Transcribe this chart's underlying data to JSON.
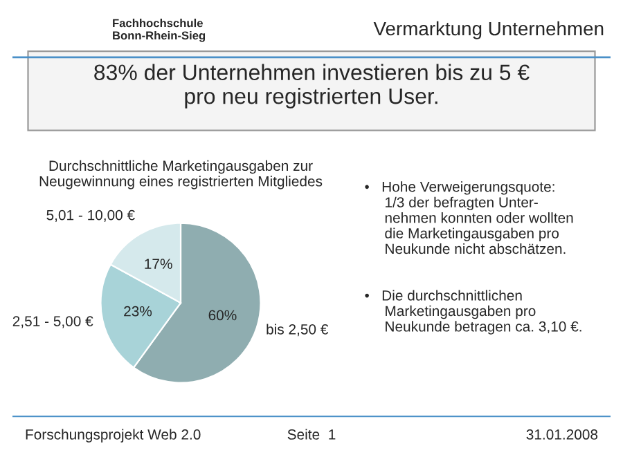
{
  "chart_data": {
    "type": "pie",
    "title": "Durchschnittliche Marketingausgaben zur\nNeugewinnung eines registrierten Mitgliedes",
    "categories": [
      "bis 2,50 €",
      "2,51 - 5,00 €",
      "5,01 - 10,00 €"
    ],
    "values": [
      60,
      23,
      17
    ],
    "colors": [
      "#8fadb0",
      "#a8d3d8",
      "#d5e9ec"
    ],
    "value_labels": [
      "60%",
      "23%",
      "17%"
    ],
    "annotations": [
      "Fachhochschule\nBonn-Rhein-Sieg",
      "Vermarktung Unternehmen",
      "83% der Unternehmen investieren bis zu 5 €\npro neu registrierten User.",
      "•   Hohe Verweigerungsquote:\n     1/3 der befragten Unter-\n     nehmen konnten oder wollten\n     die Marketingausgaben pro\n     Neukunde nicht abschätzen.",
      "•   Die durchschnittlichen\n     Marketingausgaben pro\n     Neukunde betragen ca. 3,10 €.",
      "Forschungsprojekt Web 2.0",
      "Seite  1",
      "31.01.2008"
    ]
  }
}
